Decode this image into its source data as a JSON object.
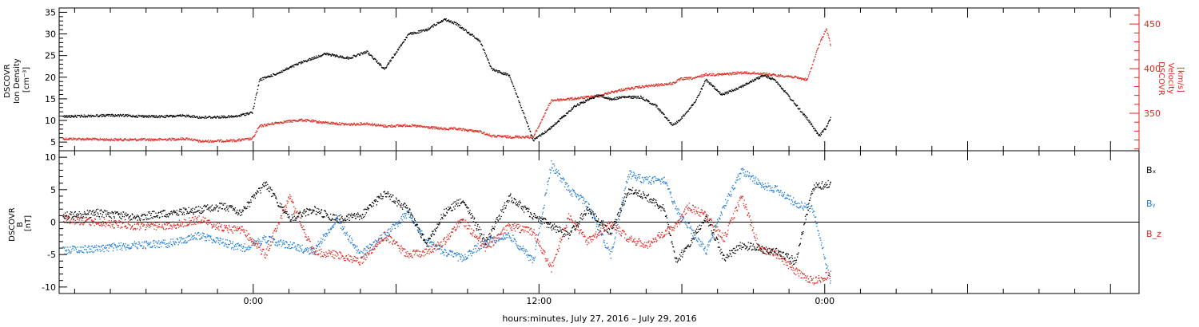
{
  "chart_data": [
    {
      "panel": "top",
      "type": "scatter",
      "ylabel_left": [
        "DSCOVR",
        "Ion Density",
        "[cm⁻³]"
      ],
      "ylabel_right": [
        "DSCOVR",
        "Velocity",
        "[km/s]"
      ],
      "ylim_left": [
        3,
        36
      ],
      "yticks_left": [
        5,
        10,
        15,
        20,
        25,
        30,
        35
      ],
      "ylim_right": [
        308,
        468
      ],
      "yticks_right": [
        350,
        400,
        450
      ],
      "colors": {
        "density": "#000000",
        "velocity": "#e0241c"
      },
      "series": [
        {
          "axis": "left",
          "x": [
            -16.0,
            -12.0,
            -8.0,
            -5.5,
            -4.5,
            -1.5,
            -0.1,
            0.5,
            2,
            4,
            6,
            8,
            9.5,
            11,
            13,
            14.5,
            16,
            17,
            19,
            20,
            21.5,
            23.5,
            25,
            27,
            29,
            30,
            31,
            32.5,
            33.8,
            35.2,
            35.9,
            37.1,
            38,
            39.3,
            41,
            42.8,
            43.8,
            45,
            46.5,
            47.5,
            48.1,
            48.5
          ],
          "y": [
            11.0,
            11.3,
            11.0,
            11.2,
            10.8,
            11.0,
            12.0,
            19.5,
            21.0,
            23.5,
            25.5,
            24.5,
            26.0,
            22.0,
            30.0,
            31.0,
            33.5,
            32.5,
            28.5,
            22.0,
            20.5,
            5.5,
            8.5,
            13.5,
            16.0,
            15.0,
            15.5,
            15.5,
            13.5,
            9.0,
            10.5,
            14.5,
            19.5,
            16.0,
            18.0,
            20.5,
            19.5,
            15.5,
            10.5,
            6.5,
            8.5,
            11.0
          ]
        },
        {
          "axis": "right",
          "x": [
            -16.0,
            -12.0,
            -8.0,
            -5.5,
            -4.5,
            -1.5,
            -0.1,
            0.5,
            2,
            4,
            6,
            8,
            9.5,
            11,
            13,
            14.5,
            16,
            17,
            19,
            20,
            21.5,
            23.5,
            25,
            27,
            29,
            30,
            31,
            32.5,
            33.8,
            35.2,
            35.9,
            37.1,
            38,
            39.3,
            41,
            42.8,
            43.8,
            45,
            46.5,
            47.5,
            48.1,
            48.5
          ],
          "y": [
            322,
            321,
            321,
            322,
            319,
            320,
            322,
            336,
            340,
            343,
            340,
            338,
            339,
            336,
            337,
            335,
            333,
            333,
            330,
            325,
            324,
            324,
            365,
            367,
            370,
            374,
            377,
            380,
            382,
            384,
            389,
            390,
            394,
            394,
            396,
            395,
            393,
            392,
            388,
            428,
            445,
            425
          ]
        }
      ]
    },
    {
      "panel": "bottom",
      "type": "scatter",
      "ylabel_left": [
        "DSCOVR",
        "B",
        "[nT]"
      ],
      "ylim": [
        -11,
        11
      ],
      "yticks": [
        -10,
        -5,
        0,
        5,
        10
      ],
      "zero_line": true,
      "legend": [
        "Bₓ",
        "Bᵧ",
        "B_z"
      ],
      "legend_colors": [
        "#000000",
        "#1a7ad6",
        "#e0241c"
      ],
      "colors": {
        "Bx": "#000000",
        "By": "#1a7ad6",
        "Bz": "#e0241c"
      },
      "series": [
        {
          "x": [
            -16,
            -13,
            -10,
            -7,
            -4.5,
            -2.5,
            -1,
            1,
            3,
            5,
            7,
            9,
            11,
            13,
            14.5,
            16,
            17.5,
            19.5,
            21.5,
            23.5,
            25,
            26.5,
            28,
            30,
            31.5,
            33,
            34.5,
            35.5,
            36.5,
            38,
            39.5,
            41,
            42.5,
            44,
            45.5,
            47,
            48.5
          ],
          "y": [
            1.0,
            1.5,
            0.8,
            1.5,
            2.0,
            2.5,
            1.5,
            6.0,
            0.5,
            2.0,
            0.5,
            1.0,
            4.5,
            2.0,
            -3.5,
            1.5,
            3.5,
            -3.0,
            4.0,
            1.0,
            -0.5,
            -2.0,
            2.0,
            -1.5,
            5.0,
            4.0,
            2.0,
            -6.0,
            -3.5,
            1.0,
            -5.5,
            -3.5,
            -4.0,
            -4.5,
            -6.0,
            5.5,
            6.0
          ]
        },
        {
          "x": [
            -16,
            -13,
            -10,
            -7,
            -4.5,
            -2.5,
            -1,
            1,
            3,
            5,
            7,
            9,
            11,
            13,
            14.5,
            16,
            17.5,
            19.5,
            21.5,
            23.5,
            25,
            26.5,
            28,
            30,
            31.5,
            33,
            34.5,
            35.5,
            36.5,
            38,
            39.5,
            41,
            42.5,
            44,
            45.5,
            47,
            48.5
          ],
          "y": [
            -4.2,
            -4.0,
            -3.5,
            -3.2,
            -2.0,
            -3.0,
            -4.0,
            -2.5,
            -3.5,
            -4.5,
            0.5,
            -5.0,
            -2.0,
            1.5,
            -3.0,
            -4.5,
            -5.5,
            -3.0,
            -2.0,
            -6.0,
            9.0,
            5.0,
            3.0,
            -5.0,
            7.5,
            6.5,
            6.5,
            2.0,
            -0.5,
            -4.5,
            2.5,
            8.0,
            6.0,
            5.0,
            3.0,
            2.0,
            -9.5
          ]
        },
        {
          "x": [
            -16,
            -13,
            -10,
            -7,
            -4.5,
            -2.5,
            -1,
            1,
            3,
            5,
            7,
            9,
            11,
            13,
            14.5,
            16,
            17.5,
            19.5,
            21.5,
            23.5,
            25,
            26.5,
            28,
            30,
            31.5,
            33,
            34.5,
            35.5,
            36.5,
            38,
            39.5,
            41,
            42.5,
            44,
            45.5,
            47,
            48.5
          ],
          "y": [
            0.5,
            0.0,
            -0.5,
            -0.5,
            0.5,
            -1.0,
            -1.0,
            -5.0,
            4.0,
            -4.5,
            -5.0,
            -6.0,
            -2.0,
            -5.0,
            -4.5,
            -3.0,
            0.5,
            -4.0,
            -0.5,
            -1.5,
            -7.0,
            1.0,
            -3.0,
            0.0,
            -2.5,
            -3.5,
            -1.5,
            -0.5,
            2.5,
            1.0,
            -2.5,
            4.0,
            -4.0,
            -5.0,
            -7.5,
            -9.0,
            -8.0
          ]
        }
      ]
    }
  ],
  "x_axis": {
    "xlim": [
      -16.3,
      74.4
    ],
    "major_ticks": [
      0,
      12,
      24,
      36,
      48,
      60,
      72
    ],
    "minor_ticks": [
      -15,
      -12,
      -9,
      -6,
      -3,
      3,
      6,
      9,
      15,
      18,
      21,
      27,
      30,
      33,
      39,
      42,
      45,
      51,
      54,
      57,
      63,
      66,
      69
    ],
    "labeled_ticks": [
      {
        "x": 0,
        "label": "0:00"
      },
      {
        "x": 24,
        "label": "12:00"
      },
      {
        "x": 48,
        "label": "0:00"
      }
    ],
    "title": "hours:minutes, July 27, 2016 – July 29, 2016"
  }
}
